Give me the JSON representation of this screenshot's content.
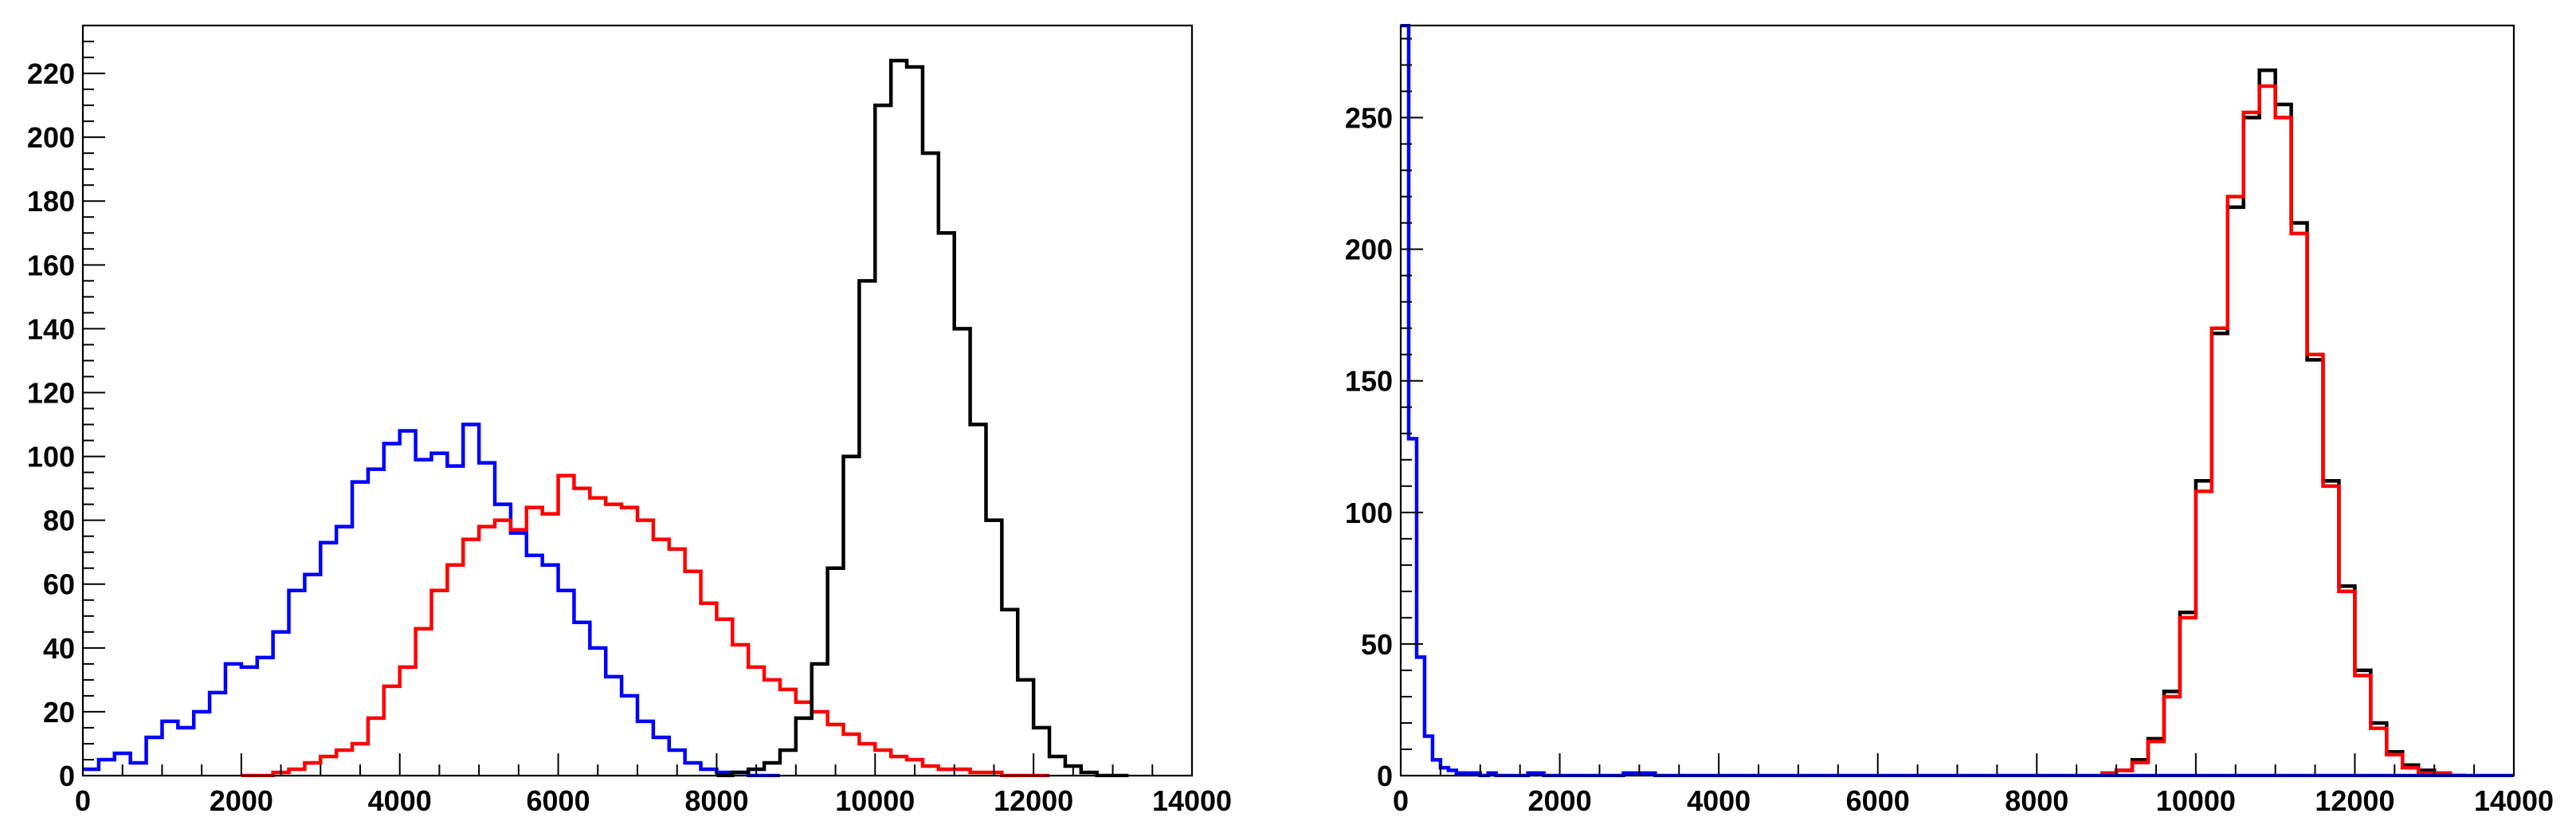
{
  "chart_data": [
    {
      "type": "histogram",
      "xlim": [
        0,
        14000
      ],
      "ylim": [
        0,
        235
      ],
      "grid": false,
      "x_ticks": [
        0,
        2000,
        4000,
        6000,
        8000,
        10000,
        12000,
        14000
      ],
      "x_tick_labels": [
        "0",
        "2000",
        "4000",
        "6000",
        "8000",
        "10000",
        "12000",
        "14000"
      ],
      "y_ticks": [
        0,
        20,
        40,
        60,
        80,
        100,
        120,
        140,
        160,
        180,
        200,
        220
      ],
      "y_tick_labels": [
        "0",
        "20",
        "40",
        "60",
        "80",
        "100",
        "120",
        "140",
        "160",
        "180",
        "200",
        "220"
      ],
      "series": [
        {
          "color": "#0000ff",
          "x": [
            0,
            200,
            400,
            600,
            800,
            1000,
            1200,
            1400,
            1600,
            1800,
            2000,
            2200,
            2400,
            2600,
            2800,
            3000,
            3200,
            3400,
            3600,
            3800,
            4000,
            4200,
            4400,
            4600,
            4800,
            5000,
            5200,
            5400,
            5600,
            5800,
            6000,
            6200,
            6400,
            6600,
            6800,
            7000,
            7200,
            7400,
            7600,
            7800,
            8000,
            8200,
            8400,
            8600
          ],
          "y": [
            2,
            5,
            7,
            4,
            12,
            17,
            15,
            20,
            26,
            35,
            34,
            37,
            45,
            58,
            63,
            73,
            78,
            92,
            96,
            104,
            108,
            99,
            101,
            97,
            110,
            98,
            85,
            76,
            69,
            66,
            58,
            48,
            40,
            31,
            25,
            17,
            12,
            8,
            4,
            2,
            1,
            1,
            0,
            0
          ]
        },
        {
          "color": "#ff0000",
          "x": [
            2000,
            2200,
            2400,
            2600,
            2800,
            3000,
            3200,
            3400,
            3600,
            3800,
            4000,
            4200,
            4400,
            4600,
            4800,
            5000,
            5200,
            5400,
            5600,
            5800,
            6000,
            6200,
            6400,
            6600,
            6800,
            7000,
            7200,
            7400,
            7600,
            7800,
            8000,
            8200,
            8400,
            8600,
            8800,
            9000,
            9200,
            9400,
            9600,
            9800,
            10000,
            10200,
            10400,
            10600,
            10800,
            11000,
            11200,
            11400,
            11600,
            11800,
            12000
          ],
          "y": [
            0,
            0,
            1,
            2,
            4,
            6,
            8,
            10,
            18,
            28,
            34,
            46,
            58,
            66,
            74,
            78,
            80,
            77,
            84,
            82,
            94,
            90,
            87,
            85,
            84,
            80,
            74,
            71,
            64,
            54,
            49,
            41,
            34,
            30,
            27,
            23,
            20,
            16,
            13,
            10,
            8,
            6,
            5,
            3,
            2,
            2,
            1,
            1,
            0,
            0,
            0
          ]
        },
        {
          "color": "#000000",
          "x": [
            8000,
            8200,
            8400,
            8600,
            8800,
            9000,
            9200,
            9400,
            9600,
            9800,
            10000,
            10200,
            10400,
            10600,
            10800,
            11000,
            11200,
            11400,
            11600,
            11800,
            12000,
            12200,
            12400,
            12600,
            12800,
            13000
          ],
          "y": [
            0,
            1,
            2,
            4,
            8,
            18,
            35,
            65,
            100,
            155,
            210,
            224,
            222,
            195,
            170,
            140,
            110,
            80,
            52,
            30,
            15,
            6,
            3,
            1,
            0,
            0
          ]
        }
      ]
    },
    {
      "type": "histogram",
      "xlim": [
        0,
        14000
      ],
      "ylim": [
        0,
        285
      ],
      "grid": false,
      "x_ticks": [
        0,
        2000,
        4000,
        6000,
        8000,
        10000,
        12000,
        14000
      ],
      "x_tick_labels": [
        "0",
        "2000",
        "4000",
        "6000",
        "8000",
        "10000",
        "12000",
        "14000"
      ],
      "y_ticks": [
        0,
        50,
        100,
        150,
        200,
        250
      ],
      "y_tick_labels": [
        "0",
        "50",
        "100",
        "150",
        "200",
        "250"
      ],
      "series": [
        {
          "color": "#000000",
          "x": [
            8800,
            9000,
            9200,
            9400,
            9600,
            9800,
            10000,
            10200,
            10400,
            10600,
            10800,
            11000,
            11200,
            11400,
            11600,
            11800,
            12000,
            12200,
            12400,
            12600,
            12800,
            13000,
            13200
          ],
          "y": [
            1,
            2,
            6,
            14,
            32,
            62,
            112,
            168,
            216,
            250,
            268,
            255,
            210,
            158,
            112,
            72,
            40,
            20,
            9,
            4,
            2,
            1,
            0
          ]
        },
        {
          "color": "#ff0000",
          "x": [
            8800,
            9000,
            9200,
            9400,
            9600,
            9800,
            10000,
            10200,
            10400,
            10600,
            10800,
            11000,
            11200,
            11400,
            11600,
            11800,
            12000,
            12200,
            12400,
            12600,
            12800,
            13000,
            13200
          ],
          "y": [
            1,
            2,
            5,
            13,
            30,
            60,
            108,
            170,
            220,
            252,
            262,
            250,
            206,
            160,
            110,
            70,
            38,
            18,
            8,
            3,
            1,
            1,
            0
          ]
        },
        {
          "color": "#0000ff",
          "x": [
            0,
            100,
            200,
            300,
            400,
            500,
            600,
            700,
            800,
            900,
            1000,
            1100,
            1200,
            1400,
            1600,
            1800,
            2000,
            2400,
            2800,
            3200,
            3600,
            4000,
            5000,
            6000,
            7000,
            8000,
            9000,
            10000,
            11000,
            12000,
            13000,
            14000
          ],
          "y": [
            285,
            128,
            45,
            15,
            6,
            3,
            2,
            1,
            1,
            1,
            0,
            1,
            0,
            0,
            1,
            0,
            0,
            0,
            1,
            0,
            0,
            0,
            0,
            0,
            0,
            0,
            0,
            0,
            0,
            0,
            0,
            0
          ]
        }
      ]
    }
  ]
}
